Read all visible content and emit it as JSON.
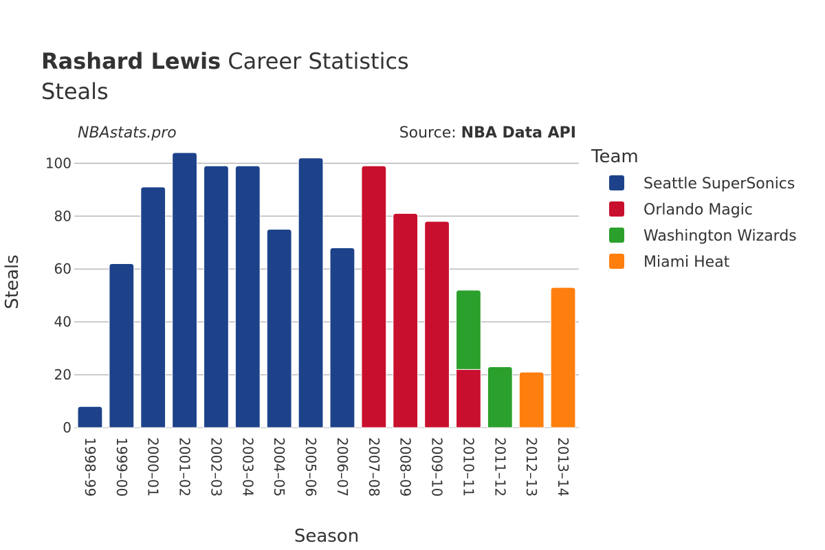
{
  "header": {
    "title_bold": "Rashard Lewis",
    "title_rest": " Career Statistics",
    "subtitle": "Steals",
    "brand": "NBAstats.pro",
    "source_prefix": "Source: ",
    "source_bold": "NBA Data API"
  },
  "chart_data": {
    "type": "bar",
    "stacked": true,
    "xlabel": "Season",
    "ylabel": "Steals",
    "ylim": [
      0,
      104
    ],
    "yticks": [
      0,
      20,
      40,
      60,
      80,
      100
    ],
    "grid": true,
    "legend_title": "Team",
    "legend_position": "right",
    "categories": [
      "1998–99",
      "1999–00",
      "2000–01",
      "2001–02",
      "2002–03",
      "2003–04",
      "2004–05",
      "2005–06",
      "2006–07",
      "2007–08",
      "2008–09",
      "2009–10",
      "2010–11",
      "2011–12",
      "2012–13",
      "2013–14"
    ],
    "series": [
      {
        "name": "Seattle SuperSonics",
        "color": "#1d428a",
        "values": [
          8,
          62,
          91,
          104,
          99,
          99,
          75,
          102,
          68,
          0,
          0,
          0,
          0,
          0,
          0,
          0
        ]
      },
      {
        "name": "Orlando Magic",
        "color": "#c8102e",
        "values": [
          0,
          0,
          0,
          0,
          0,
          0,
          0,
          0,
          0,
          99,
          81,
          78,
          22,
          0,
          0,
          0
        ]
      },
      {
        "name": "Washington Wizards",
        "color": "#2ca02c",
        "values": [
          0,
          0,
          0,
          0,
          0,
          0,
          0,
          0,
          0,
          0,
          0,
          0,
          30,
          23,
          0,
          0
        ]
      },
      {
        "name": "Miami Heat",
        "color": "#ff7f0e",
        "values": [
          0,
          0,
          0,
          0,
          0,
          0,
          0,
          0,
          0,
          0,
          0,
          0,
          0,
          0,
          21,
          53
        ]
      }
    ]
  }
}
